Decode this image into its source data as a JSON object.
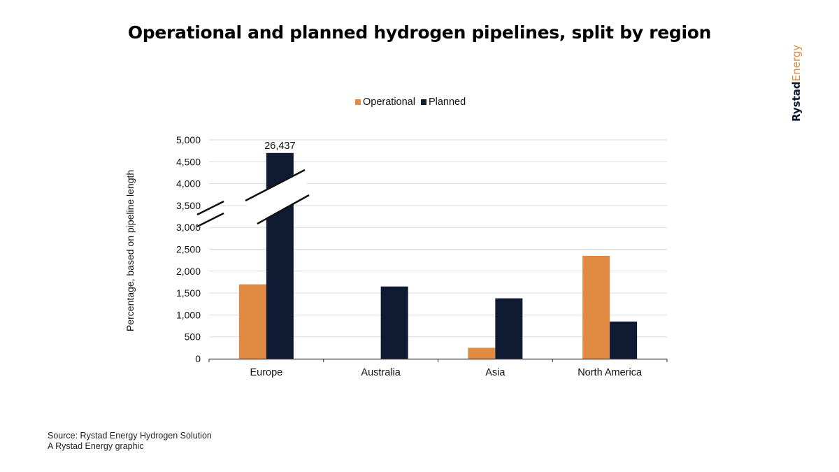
{
  "title": "Operational and planned hydrogen pipelines, split by region",
  "brand": {
    "part1": "Rystad",
    "part2": "Energy"
  },
  "footer": {
    "source": "Source: Rystad Energy Hydrogen Solution",
    "credit": "A Rystad Energy graphic"
  },
  "colors": {
    "operational": "#e08a43",
    "planned": "#0f1b33"
  },
  "chart_data": {
    "type": "bar",
    "title": "Operational and planned hydrogen pipelines, split by region",
    "ylabel": "Percentage, based on pipeline length",
    "xlabel": "",
    "categories": [
      "Europe",
      "Australia",
      "Asia",
      "North America"
    ],
    "series": [
      {
        "name": "Operational",
        "values": [
          1700,
          0,
          250,
          2350
        ]
      },
      {
        "name": "Planned",
        "values": [
          26437,
          1650,
          1380,
          850
        ]
      }
    ],
    "ylim": [
      0,
      5000
    ],
    "yticks": [
      0,
      500,
      1000,
      1500,
      2000,
      2500,
      3000,
      3500,
      4000,
      4500,
      5000
    ],
    "ytick_labels": [
      "0",
      "500",
      "1,000",
      "1,500",
      "2,000",
      "2,500",
      "3,000",
      "3,500",
      "4,000",
      "4,500",
      "5,000"
    ],
    "axis_break": true,
    "annotations": [
      {
        "category": "Europe",
        "series": "Planned",
        "text": "26,437"
      }
    ],
    "legend": "top-center",
    "grid": true
  }
}
